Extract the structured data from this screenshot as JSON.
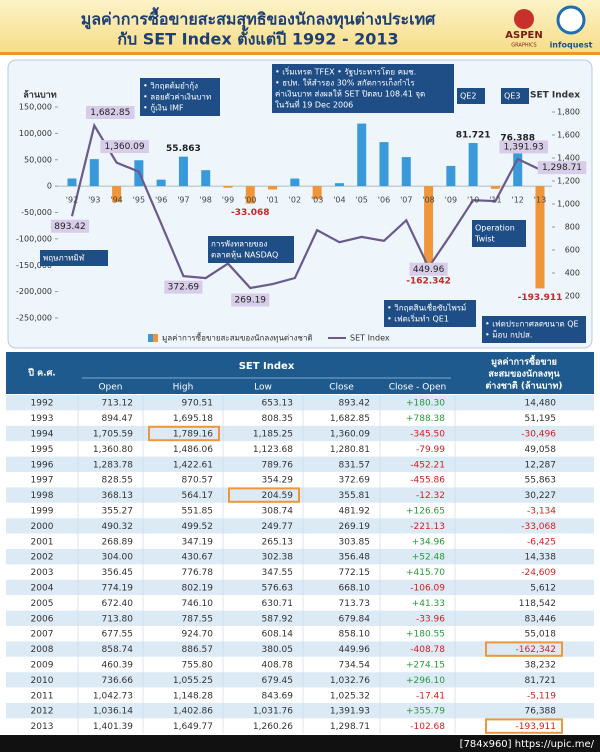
{
  "header": {
    "title_line1": "มูลค่าการซื้อขายสะสมสุทธิของนักลงทุนต่างประเทศ",
    "title_line2": "กับ  SET Index ตั้งแต่ปี  1992 - 2013",
    "logo_left": "ASPEN",
    "logo_left_sub": "GRAPHICS",
    "logo_right": "infoquest"
  },
  "chart_data": {
    "type": "bar",
    "categories": [
      "'92",
      "'93",
      "'94",
      "'95",
      "'96",
      "'97",
      "'98",
      "'99",
      "'00",
      "'01",
      "'02",
      "'03",
      "'04",
      "'05",
      "'06",
      "'07",
      "'08",
      "'09",
      "'10",
      "'11",
      "'12",
      "'13"
    ],
    "y_label": "ล้านบาท",
    "y2_label": "SET Index",
    "ylim": [
      -250000,
      150000
    ],
    "yticks": [
      {
        "value": 150000,
        "label": "150,000"
      },
      {
        "value": 100000,
        "label": "100,000"
      },
      {
        "value": 50000,
        "label": "50,000"
      },
      0,
      {
        "value": -50000,
        "label": "-50,000"
      },
      {
        "value": -100000,
        "label": "-100,000"
      },
      {
        "value": -150000,
        "label": "-150,000"
      },
      {
        "value": -200000,
        "label": "-200,000"
      },
      {
        "value": -250000,
        "label": "-250,000"
      }
    ],
    "y2lim": [
      0,
      1800
    ],
    "y2ticks": [
      {
        "value": 1800,
        "label": "1,800"
      },
      {
        "value": 1600,
        "label": "1,600"
      },
      {
        "value": 1400,
        "label": "1,400"
      },
      {
        "value": 1200,
        "label": "1,200"
      },
      {
        "value": 1000,
        "label": "1,000"
      },
      800,
      600,
      400,
      200
    ],
    "legend": "bottom",
    "series": [
      {
        "name": "มูลค่าการซื้อขายสะสมของนักลงทุนต่างชาติ",
        "type": "bar",
        "color": "#3a9ad9",
        "negative_color": "#f0963a",
        "values": [
          14480,
          51195,
          -30496,
          49058,
          12287,
          55863,
          30227,
          -3134,
          -33068,
          -6425,
          14338,
          -24609,
          5612,
          118542,
          83446,
          55018,
          -162342,
          38232,
          81721,
          -5119,
          76388,
          -193911
        ],
        "value_labels": [
          null,
          null,
          null,
          null,
          null,
          "55.863",
          null,
          null,
          "-33.068",
          null,
          null,
          null,
          null,
          null,
          null,
          null,
          "-162.342",
          null,
          "81.721",
          null,
          "76.388",
          "-193.911"
        ]
      },
      {
        "name": "SET Index",
        "type": "line",
        "axis": "y2",
        "color": "#6a5a8c",
        "values": [
          893.42,
          1682.85,
          1360.09,
          1280.81,
          831.57,
          372.69,
          355.81,
          481.92,
          269.19,
          303.85,
          356.48,
          772.15,
          668.1,
          713.73,
          679.84,
          858.1,
          449.96,
          734.54,
          1032.76,
          1025.32,
          1391.93,
          1298.71
        ],
        "value_labels": [
          "893.42",
          "1,682.85",
          "1,360.09",
          null,
          null,
          "372.69",
          null,
          null,
          "269.19",
          null,
          null,
          null,
          null,
          null,
          null,
          null,
          "449.96",
          null,
          null,
          null,
          "1,391.93",
          "1,298.71"
        ]
      }
    ],
    "annotations": [
      {
        "lines": [
          "พฤษภาทมิฬ"
        ]
      },
      {
        "lines": [
          "• วิกฤตต้มยำกุ้ง",
          "• ลอยตัวค่าเงินบาท",
          "• กู้เงิน IMF"
        ]
      },
      {
        "lines": [
          "การพังทลายของ",
          "ตลาดหุ้น NASDAQ"
        ]
      },
      {
        "lines": [
          "• เริ่มเทรด  TFEX  • รัฐประหารโดย คมช.",
          "• ธปท. ให้สำรอง 30% สกัดการเก็งกำไร",
          "ค่าเงินบาท ส่งผลให้ SET ปิดลบ 108.41 จุด",
          "ในวันที่  19 Dec 2006"
        ]
      },
      {
        "lines": [
          "QE2"
        ]
      },
      {
        "lines": [
          "QE3"
        ]
      },
      {
        "lines": [
          "Operation",
          "Twist"
        ]
      },
      {
        "lines": [
          "• วิกฤตสินเชื่อซับไพรม์",
          "• เฟดเริ่มทำ  QE1"
        ]
      },
      {
        "lines": [
          "• เฟดประกาศลดขนาด QE",
          "• ม็อบ กปปส."
        ]
      }
    ]
  },
  "table": {
    "header_year": "ปี ค.ศ.",
    "header_group": "SET Index",
    "header_flow": [
      "มูลค่าการซื้อขาย",
      "สะสมของนักลงทุน",
      "ต่างชาติ (ล้านบาท)"
    ],
    "columns": [
      "Open",
      "High",
      "Low",
      "Close",
      "Close - Open"
    ],
    "highlight_color": "#f0963a",
    "highlights": [
      {
        "row": 2,
        "col": 2
      },
      {
        "row": 6,
        "col": 3
      },
      {
        "row": 16,
        "col": 6
      },
      {
        "row": 21,
        "col": 6
      }
    ],
    "rows": [
      [
        "1992",
        "713.12",
        "970.51",
        "653.13",
        "893.42",
        "+180.30",
        "14,480"
      ],
      [
        "1993",
        "894.47",
        "1,695.18",
        "808.35",
        "1,682.85",
        "+788.38",
        "51,195"
      ],
      [
        "1994",
        "1,705.59",
        "1,789.16",
        "1,185.25",
        "1,360.09",
        "-345.50",
        "-30,496"
      ],
      [
        "1995",
        "1,360.80",
        "1,486.06",
        "1,123.68",
        "1,280.81",
        "-79.99",
        "49,058"
      ],
      [
        "1996",
        "1,283.78",
        "1,422.61",
        "789.76",
        "831.57",
        "-452.21",
        "12,287"
      ],
      [
        "1997",
        "828.55",
        "870.57",
        "354.29",
        "372.69",
        "-455.86",
        "55,863"
      ],
      [
        "1998",
        "368.13",
        "564.17",
        "204.59",
        "355.81",
        "-12.32",
        "30,227"
      ],
      [
        "1999",
        "355.27",
        "551.85",
        "308.74",
        "481.92",
        "+126.65",
        "-3,134"
      ],
      [
        "2000",
        "490.32",
        "499.52",
        "249.77",
        "269.19",
        "-221.13",
        "-33,068"
      ],
      [
        "2001",
        "268.89",
        "347.19",
        "265.13",
        "303.85",
        "+34.96",
        "-6,425"
      ],
      [
        "2002",
        "304.00",
        "430.67",
        "302.38",
        "356.48",
        "+52.48",
        "14,338"
      ],
      [
        "2003",
        "356.45",
        "776.78",
        "347.55",
        "772.15",
        "+415.70",
        "-24,609"
      ],
      [
        "2004",
        "774.19",
        "802.19",
        "576.63",
        "668.10",
        "-106.09",
        "5,612"
      ],
      [
        "2005",
        "672.40",
        "746.10",
        "630.71",
        "713.73",
        "+41.33",
        "118,542"
      ],
      [
        "2006",
        "713.80",
        "787.55",
        "587.92",
        "679.84",
        "-33.96",
        "83,446"
      ],
      [
        "2007",
        "677.55",
        "924.70",
        "608.14",
        "858.10",
        "+180.55",
        "55,018"
      ],
      [
        "2008",
        "858.74",
        "886.57",
        "380.05",
        "449.96",
        "-408.78",
        "-162,342"
      ],
      [
        "2009",
        "460.39",
        "755.80",
        "408.78",
        "734.54",
        "+274.15",
        "38,232"
      ],
      [
        "2010",
        "736.66",
        "1,055.25",
        "679.45",
        "1,032.76",
        "+296.10",
        "81,721"
      ],
      [
        "2011",
        "1,042.73",
        "1,148.28",
        "843.69",
        "1,025.32",
        "-17.41",
        "-5,119"
      ],
      [
        "2012",
        "1,036.14",
        "1,402.86",
        "1,031.76",
        "1,391.93",
        "+355.79",
        "76,388"
      ],
      [
        "2013",
        "1,401.39",
        "1,649.77",
        "1,260.26",
        "1,298.71",
        "-102.68",
        "-193,911"
      ]
    ]
  },
  "footer": "[784x960] https://upic.me/"
}
